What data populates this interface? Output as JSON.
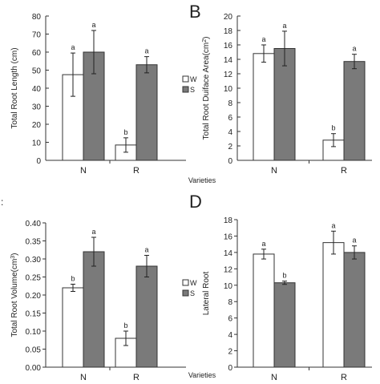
{
  "panel_labels": {
    "B": "B",
    "C": "C",
    "D": "D"
  },
  "axis_word_varieties": "Varieties",
  "colors": {
    "W": "#ffffff",
    "S": "#7a7a7a",
    "axis": "#333333"
  },
  "chart_data": [
    {
      "id": "A",
      "type": "bar",
      "categories": [
        "N",
        "R"
      ],
      "series": [
        {
          "name": "W",
          "values": [
            47.5,
            8.5
          ],
          "errors": [
            12,
            4
          ],
          "letters": [
            "a",
            "b"
          ]
        },
        {
          "name": "S",
          "values": [
            60,
            53
          ],
          "errors": [
            12,
            4.5
          ],
          "letters": [
            "a",
            "a"
          ]
        }
      ],
      "ylabel": "Total Root Length (cm)",
      "xlabel": "Varieties",
      "ylim": [
        0,
        80
      ],
      "yticks": [
        "0",
        "10",
        "20",
        "30",
        "40",
        "50",
        "60",
        "70",
        "80"
      ],
      "legend": [
        "W",
        "S"
      ],
      "legend_position": "inside-middle-left"
    },
    {
      "id": "B",
      "type": "bar",
      "categories": [
        "N",
        "R"
      ],
      "series": [
        {
          "name": "W",
          "values": [
            14.8,
            2.8
          ],
          "errors": [
            1.2,
            0.9
          ],
          "letters": [
            "a",
            "b"
          ]
        },
        {
          "name": "S",
          "values": [
            15.5,
            13.7
          ],
          "errors": [
            2.4,
            1.0
          ],
          "letters": [
            "a",
            "a"
          ]
        }
      ],
      "ylabel": "Total Root Duiface Area(cm",
      "ylabel_sup": "2",
      "ylabel_end": ")",
      "ylim": [
        0,
        20
      ],
      "yticks": [
        "0",
        "2",
        "4",
        "6",
        "8",
        "10",
        "12",
        "14",
        "16",
        "18",
        "20"
      ]
    },
    {
      "id": "C",
      "type": "bar",
      "categories": [
        "N",
        "R"
      ],
      "series": [
        {
          "name": "W",
          "values": [
            0.22,
            0.08
          ],
          "errors": [
            0.01,
            0.02
          ],
          "letters": [
            "b",
            "b"
          ]
        },
        {
          "name": "S",
          "values": [
            0.32,
            0.28
          ],
          "errors": [
            0.04,
            0.03
          ],
          "letters": [
            "a",
            "a"
          ]
        }
      ],
      "ylabel": "Total Root Volume(cm",
      "ylabel_sup": "3",
      "ylabel_end": ")",
      "xlabel": "Varieties",
      "ylim": [
        0,
        0.4
      ],
      "yticks": [
        "0.00",
        "0.05",
        "0.10",
        "0.15",
        "0.20",
        "0.25",
        "0.30",
        "0.35",
        "0.40"
      ],
      "legend": [
        "W",
        "S"
      ],
      "legend_position": "inside-middle-left"
    },
    {
      "id": "D",
      "type": "bar",
      "categories": [
        "N",
        "R"
      ],
      "series": [
        {
          "name": "W",
          "values": [
            13.8,
            15.2
          ],
          "errors": [
            0.6,
            1.4
          ],
          "letters": [
            "a",
            "a"
          ]
        },
        {
          "name": "S",
          "values": [
            10.3,
            14.0
          ],
          "errors": [
            0.2,
            0.8
          ],
          "letters": [
            "b",
            "a"
          ]
        }
      ],
      "ylabel": "Lateral Root",
      "ylim": [
        0,
        18
      ],
      "yticks": [
        "0",
        "2",
        "4",
        "6",
        "8",
        "10",
        "12",
        "14",
        "16",
        "18"
      ]
    }
  ]
}
